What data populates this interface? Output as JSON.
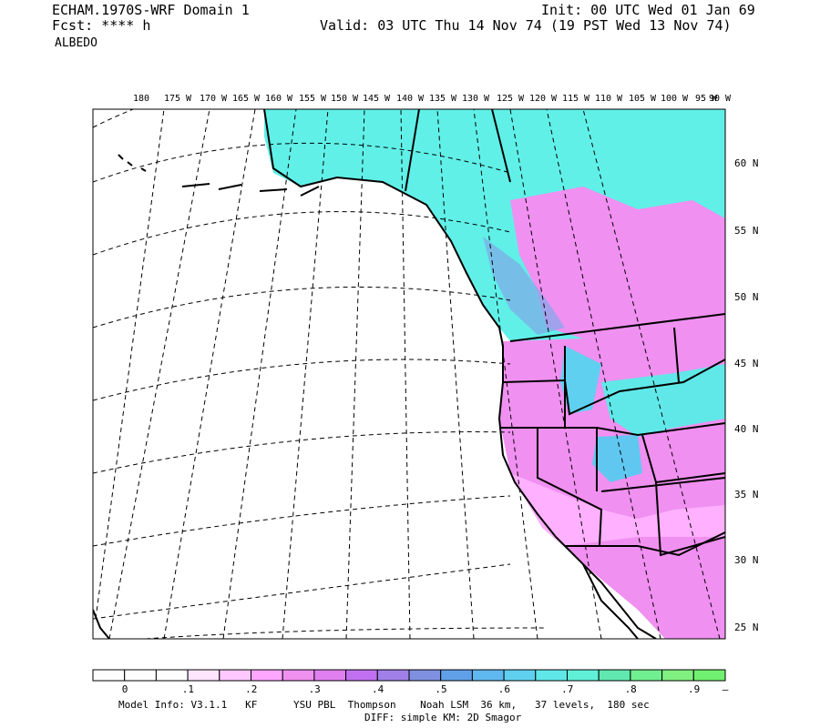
{
  "header": {
    "title": "ECHAM.1970S-WRF Domain 1",
    "fcst": "Fcst: **** h",
    "field": "ALBEDO",
    "init": "Init: 00 UTC Wed 01 Jan 69",
    "valid": "Valid: 03 UTC Thu 14 Nov 74 (19 PST Wed 13 Nov 74)"
  },
  "map": {
    "lon_labels": [
      "180",
      "175 W",
      "170 W",
      "165 W",
      "160 W",
      "155 W",
      "150 W",
      "145 W",
      "140 W",
      "135 W",
      "130 W",
      "125 W",
      "120 W",
      "115 W",
      "110 W",
      "105 W",
      "100 W",
      "95 W",
      "90 W"
    ],
    "lat_labels": [
      "60 N",
      "55 N",
      "50 N",
      "45 N",
      "40 N",
      "35 N",
      "30 N",
      "25 N"
    ]
  },
  "colorbar": {
    "colors": [
      "#ffffff",
      "#ffffff",
      "#ffffff",
      "#ffe6ff",
      "#ffc8ff",
      "#ffa6ff",
      "#f090f0",
      "#e080f0",
      "#c070f0",
      "#a080e8",
      "#8090e0",
      "#60a0e8",
      "#60b8f0",
      "#60d0f0",
      "#60e8e8",
      "#60f0d8",
      "#60e8b0",
      "#70f090",
      "#80f080",
      "#70f070"
    ],
    "labels": [
      "0",
      ".1",
      ".2",
      ".3",
      ".4",
      ".5",
      ".6",
      ".7",
      ".8",
      ".9",
      "–"
    ]
  },
  "footer": {
    "line1": "Model Info: V3.1.1   KF      YSU PBL  Thompson    Noah LSM  36 km,   37 levels,  180 sec",
    "line2": "DIFF: simple KM: 2D Smagor"
  }
}
